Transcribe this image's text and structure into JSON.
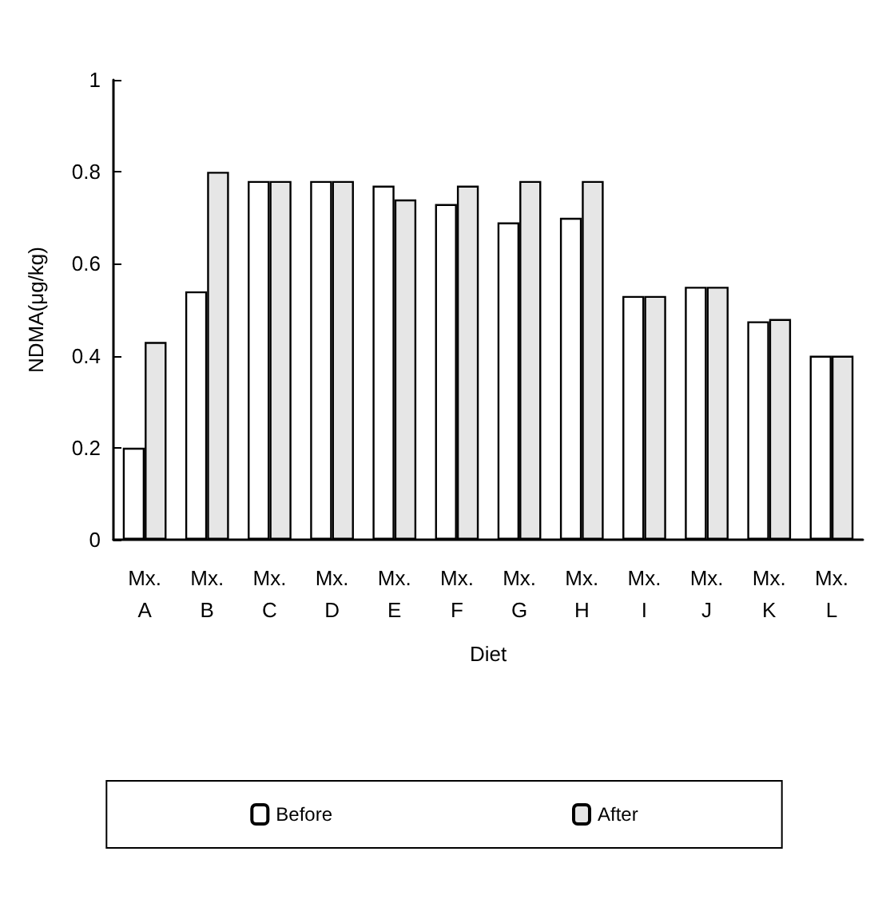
{
  "chart_data": {
    "type": "bar",
    "xlabel": "Diet",
    "ylabel": "NDMA(μg/kg)",
    "categories": [
      "Mx.\nA",
      "Mx.\nB",
      "Mx.\nC",
      "Mx.\nD",
      "Mx.\nE",
      "Mx.\nF",
      "Mx.\nG",
      "Mx.\nH",
      "Mx.\nI",
      "Mx.\nJ",
      "Mx.\nK",
      "Mx.\nL"
    ],
    "series": [
      {
        "name": "Before",
        "color": "#ffffff",
        "values": [
          0.2,
          0.54,
          0.78,
          0.78,
          0.77,
          0.73,
          0.69,
          0.7,
          0.53,
          0.55,
          0.475,
          0.4
        ]
      },
      {
        "name": "After",
        "color": "#e6e6e6",
        "values": [
          0.43,
          0.8,
          0.78,
          0.78,
          0.74,
          0.77,
          0.78,
          0.78,
          0.53,
          0.55,
          0.48,
          0.4
        ]
      }
    ],
    "ylim": [
      0,
      1
    ],
    "yticks": [
      0,
      0.2,
      0.4,
      0.6,
      0.8,
      1
    ],
    "grid": false,
    "legend": "bottom"
  }
}
